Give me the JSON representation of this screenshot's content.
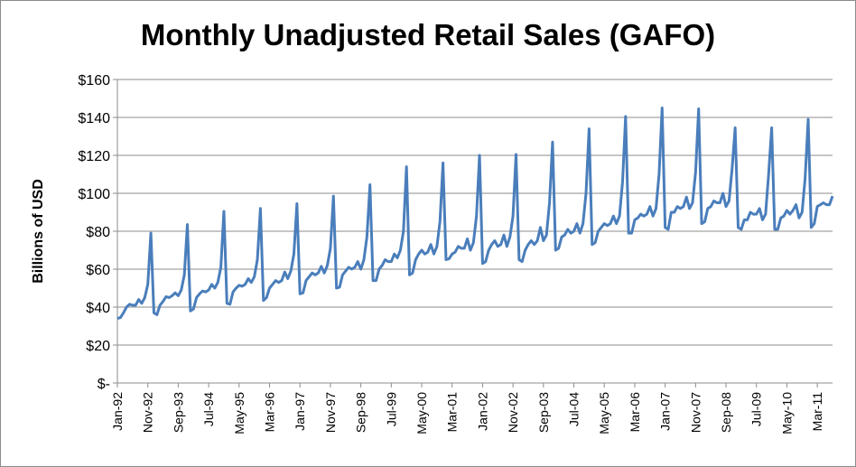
{
  "chart_data": {
    "type": "line",
    "title": "Monthly Unadjusted Retail Sales (GAFO)",
    "xlabel": "",
    "ylabel": "Billions of USD",
    "ylim": [
      0,
      160
    ],
    "yticks": [
      0,
      20,
      40,
      60,
      80,
      100,
      120,
      140,
      160
    ],
    "ytick_labels": [
      "$-",
      "$20",
      "$40",
      "$60",
      "$80",
      "$100",
      "$120",
      "$140",
      "$160"
    ],
    "x_start": "Jan-92",
    "x_end": "Aug-11",
    "xtick_labels": [
      "Jan-92",
      "Nov-92",
      "Sep-93",
      "Jul-94",
      "May-95",
      "Mar-96",
      "Jan-97",
      "Nov-97",
      "Sep-98",
      "Jul-99",
      "May-00",
      "Mar-01",
      "Jan-02",
      "Nov-02",
      "Sep-03",
      "Jul-04",
      "May-05",
      "Mar-06",
      "Jan-07",
      "Nov-07",
      "Sep-08",
      "Jul-09",
      "May-10",
      "Mar-11"
    ],
    "grid": true,
    "legend": "none",
    "line_color": "#4a7ebb",
    "series": [
      {
        "values": [
          34,
          34.5,
          37,
          40,
          41.5,
          41,
          41,
          44,
          42,
          45,
          52,
          79,
          37,
          36,
          41,
          43,
          45.5,
          45,
          46,
          47.5,
          46,
          49,
          57,
          83.5,
          38,
          39,
          45,
          47,
          48.5,
          48,
          49,
          52,
          50,
          53,
          61,
          90.5,
          42,
          41.5,
          48,
          50,
          51.5,
          51,
          52,
          55,
          53,
          56,
          65,
          92,
          43.5,
          45,
          50,
          52,
          54,
          53,
          54,
          58.5,
          55,
          59,
          68,
          94.5,
          47,
          47.5,
          54,
          56,
          58,
          57,
          58,
          61.5,
          58,
          62,
          71,
          98.5,
          50,
          50.5,
          57,
          59,
          61,
          60,
          61,
          64,
          60,
          65,
          77,
          104.5,
          54,
          54,
          60,
          62,
          65,
          64,
          64,
          68,
          66,
          70,
          80,
          114,
          57,
          58,
          65,
          68,
          70,
          68,
          69,
          73,
          68,
          72,
          85,
          116,
          65,
          65.5,
          68,
          69,
          72,
          71,
          71,
          76,
          70,
          74,
          88,
          120,
          63,
          64,
          70,
          73,
          75,
          72,
          73,
          78,
          72,
          77,
          88,
          120.5,
          65,
          64,
          70,
          73,
          75,
          73,
          75,
          82,
          75,
          78,
          95,
          127,
          70,
          71,
          77,
          78,
          81,
          79,
          80,
          84,
          79,
          84,
          100,
          134,
          73,
          74,
          80,
          82,
          84,
          83,
          84,
          88,
          84,
          88,
          106,
          140.5,
          79,
          79,
          86,
          87,
          89,
          88,
          89,
          93,
          88,
          92,
          110,
          145,
          82,
          81,
          90,
          90,
          93,
          92,
          93,
          98,
          92,
          95,
          111,
          144.5,
          84,
          85,
          92,
          93,
          96,
          95,
          95,
          100,
          93,
          96,
          113,
          134.5,
          82,
          81,
          86,
          86,
          90,
          89,
          89,
          92,
          86,
          89,
          110,
          134.5,
          81,
          81,
          87,
          88,
          91,
          89,
          91,
          94,
          87,
          90,
          108,
          139,
          82,
          84,
          93,
          94,
          95,
          94,
          94,
          98.5
        ]
      }
    ]
  }
}
